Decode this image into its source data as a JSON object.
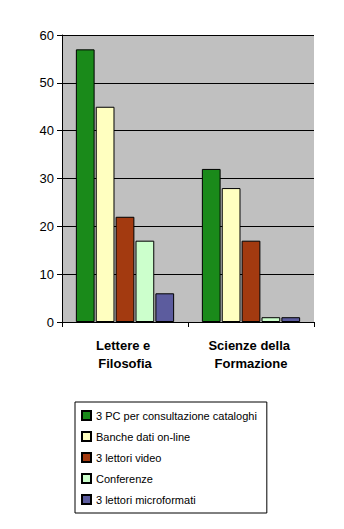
{
  "chart_data": {
    "type": "bar",
    "categories": [
      "Lettere e Filosofia",
      "Scienze della Formazione"
    ],
    "series": [
      {
        "name": "3 PC per consultazione cataloghi",
        "color": "#1a8a1a",
        "values": [
          57,
          32
        ]
      },
      {
        "name": "Banche dati on-line",
        "color": "#ffffc0",
        "values": [
          45,
          28
        ]
      },
      {
        "name": "3 lettori video",
        "color": "#a33a10",
        "values": [
          22,
          17
        ]
      },
      {
        "name": "Conferenze",
        "color": "#ccffcc",
        "values": [
          17,
          1
        ]
      },
      {
        "name": "3 lettori microformati",
        "color": "#5c5c9e",
        "values": [
          6,
          1
        ]
      }
    ],
    "ylim": [
      0,
      60
    ],
    "yticks": [
      0,
      10,
      20,
      30,
      40,
      50,
      60
    ],
    "grid": true,
    "legend": "bottom"
  }
}
